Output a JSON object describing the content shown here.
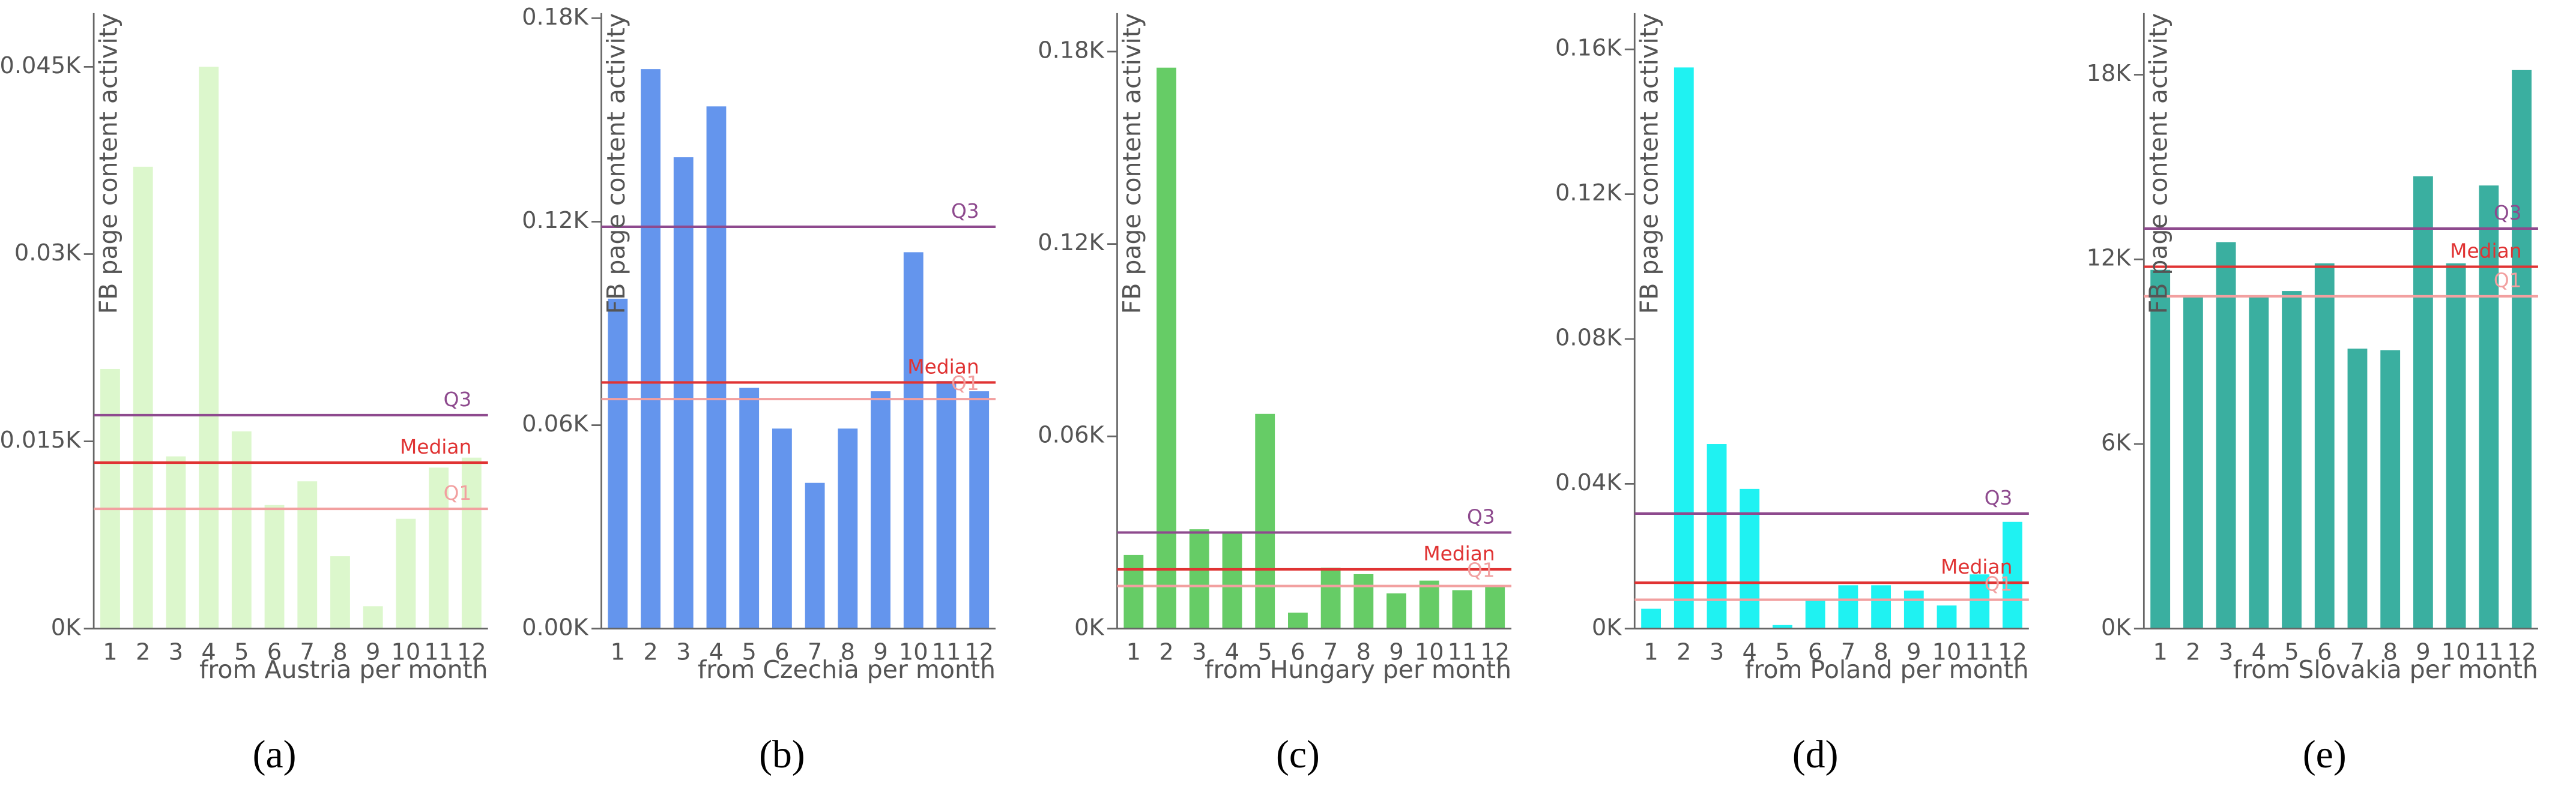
{
  "chart_data": [
    {
      "type": "bar",
      "panel": "(a)",
      "y_label": "FB page content activity",
      "x_label": "from Austria per month",
      "categories": [
        1,
        2,
        3,
        4,
        5,
        6,
        7,
        8,
        9,
        10,
        11,
        12
      ],
      "values": [
        0.0208,
        0.037,
        0.0138,
        0.045,
        0.0158,
        0.0099,
        0.0118,
        0.0058,
        0.0018,
        0.0088,
        0.0129,
        0.0137
      ],
      "color": "#dcf7cc",
      "ylim": [
        0,
        0.0493
      ],
      "yticks": [
        {
          "value": 0,
          "label": "0K"
        },
        {
          "value": 0.015,
          "label": "0.015K"
        },
        {
          "value": 0.03,
          "label": "0.03K"
        },
        {
          "value": 0.045,
          "label": "0.045K"
        }
      ],
      "reference_lines": [
        {
          "name": "Q3",
          "value": 0.0171,
          "color": "#8e4a8e"
        },
        {
          "name": "Median",
          "value": 0.0133,
          "color": "#e03333"
        },
        {
          "name": "Q1",
          "value": 0.0096,
          "color": "#f2a0a0"
        }
      ]
    },
    {
      "type": "bar",
      "panel": "(b)",
      "y_label": "FB page content activity",
      "x_label": "from Czechia per month",
      "categories": [
        1,
        2,
        3,
        4,
        5,
        6,
        7,
        8,
        9,
        10,
        11,
        12
      ],
      "values": [
        0.0973,
        0.165,
        0.139,
        0.154,
        0.071,
        0.059,
        0.043,
        0.059,
        0.07,
        0.111,
        0.073,
        0.07
      ],
      "color": "#6495ed",
      "ylim": [
        0,
        0.1815
      ],
      "yticks": [
        {
          "value": 0,
          "label": "0.00K"
        },
        {
          "value": 0.06,
          "label": "0.06K"
        },
        {
          "value": 0.12,
          "label": "0.12K"
        },
        {
          "value": 0.18,
          "label": "0.18K"
        }
      ],
      "reference_lines": [
        {
          "name": "Q3",
          "value": 0.1185,
          "color": "#8e4a8e"
        },
        {
          "name": "Median",
          "value": 0.0726,
          "color": "#e03333"
        },
        {
          "name": "Q1",
          "value": 0.0677,
          "color": "#f2a0a0"
        }
      ]
    },
    {
      "type": "bar",
      "panel": "(c)",
      "y_label": "FB page content activity",
      "x_label": "from Hungary per month",
      "categories": [
        1,
        2,
        3,
        4,
        5,
        6,
        7,
        8,
        9,
        10,
        11,
        12
      ],
      "values": [
        0.023,
        0.175,
        0.031,
        0.03,
        0.067,
        0.005,
        0.019,
        0.017,
        0.011,
        0.015,
        0.012,
        0.013
      ],
      "color": "#66cc66",
      "ylim": [
        0,
        0.192
      ],
      "yticks": [
        {
          "value": 0,
          "label": "0K"
        },
        {
          "value": 0.06,
          "label": "0.06K"
        },
        {
          "value": 0.12,
          "label": "0.12K"
        },
        {
          "value": 0.18,
          "label": "0.18K"
        }
      ],
      "reference_lines": [
        {
          "name": "Q3",
          "value": 0.03,
          "color": "#8e4a8e"
        },
        {
          "name": "Median",
          "value": 0.0185,
          "color": "#e03333"
        },
        {
          "name": "Q1",
          "value": 0.0133,
          "color": "#f2a0a0"
        }
      ]
    },
    {
      "type": "bar",
      "panel": "(d)",
      "y_label": "FB page content activity",
      "x_label": "from Poland per month",
      "categories": [
        1,
        2,
        3,
        4,
        5,
        6,
        7,
        8,
        9,
        10,
        11,
        12
      ],
      "values": [
        0.0055,
        0.155,
        0.051,
        0.0386,
        0.001,
        0.008,
        0.012,
        0.012,
        0.0105,
        0.0064,
        0.015,
        0.0295
      ],
      "color": "#1ff2f2",
      "ylim": [
        0,
        0.17
      ],
      "yticks": [
        {
          "value": 0,
          "label": "0K"
        },
        {
          "value": 0.04,
          "label": "0.04K"
        },
        {
          "value": 0.08,
          "label": "0.08K"
        },
        {
          "value": 0.12,
          "label": "0.12K"
        },
        {
          "value": 0.16,
          "label": "0.16K"
        }
      ],
      "reference_lines": [
        {
          "name": "Q3",
          "value": 0.0318,
          "color": "#8e4a8e"
        },
        {
          "name": "Median",
          "value": 0.0127,
          "color": "#e03333"
        },
        {
          "name": "Q1",
          "value": 0.008,
          "color": "#f2a0a0"
        }
      ]
    },
    {
      "type": "bar",
      "panel": "(e)",
      "y_label": "FB page content activity",
      "x_label": "from Slovakia per month",
      "categories": [
        1,
        2,
        3,
        4,
        5,
        6,
        7,
        8,
        9,
        10,
        11,
        12
      ],
      "values": [
        11.66,
        10.8,
        12.56,
        10.8,
        10.97,
        11.87,
        9.1,
        9.05,
        14.7,
        11.87,
        14.4,
        18.15
      ],
      "color": "#3aafa0",
      "ylim": [
        0,
        20
      ],
      "yticks": [
        {
          "value": 0,
          "label": "0K"
        },
        {
          "value": 6,
          "label": "6K"
        },
        {
          "value": 12,
          "label": "12K"
        },
        {
          "value": 18,
          "label": "18K"
        }
      ],
      "reference_lines": [
        {
          "name": "Q3",
          "value": 13,
          "color": "#8e4a8e"
        },
        {
          "name": "Median",
          "value": 11.76,
          "color": "#e03333"
        },
        {
          "name": "Q1",
          "value": 10.8,
          "color": "#f2a0a0"
        }
      ]
    }
  ]
}
